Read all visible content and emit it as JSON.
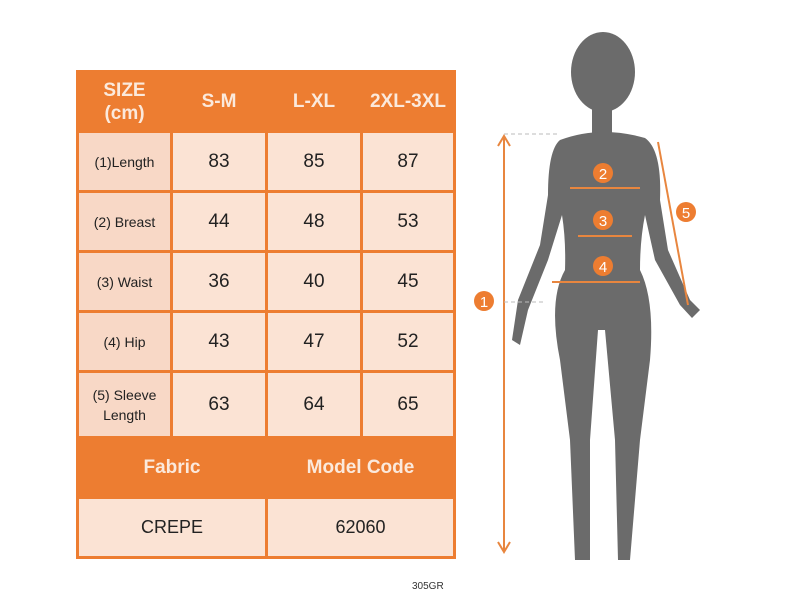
{
  "table": {
    "header": [
      "SIZE\n(cm)",
      "S-M",
      "L-XL",
      "2XL-3XL"
    ],
    "rows": [
      {
        "label": "(1)Length",
        "values": [
          "83",
          "85",
          "87"
        ]
      },
      {
        "label": "(2) Breast",
        "values": [
          "44",
          "48",
          "53"
        ]
      },
      {
        "label": "(3) Waist",
        "values": [
          "36",
          "40",
          "45"
        ]
      },
      {
        "label": "(4) Hip",
        "values": [
          "43",
          "47",
          "52"
        ]
      },
      {
        "label": "(5) Sleeve Length",
        "values": [
          "63",
          "64",
          "65"
        ]
      }
    ],
    "fabric_label": "Fabric",
    "model_code_label": "Model Code",
    "fabric": "CREPE",
    "model_code": "62060"
  },
  "image_code": "305GR",
  "figure": {
    "markers": [
      "1",
      "2",
      "3",
      "4",
      "5"
    ]
  },
  "colors": {
    "accent": "#ED7D31",
    "cell": "#FBE3D4",
    "silhouette": "#6b6b6b"
  }
}
